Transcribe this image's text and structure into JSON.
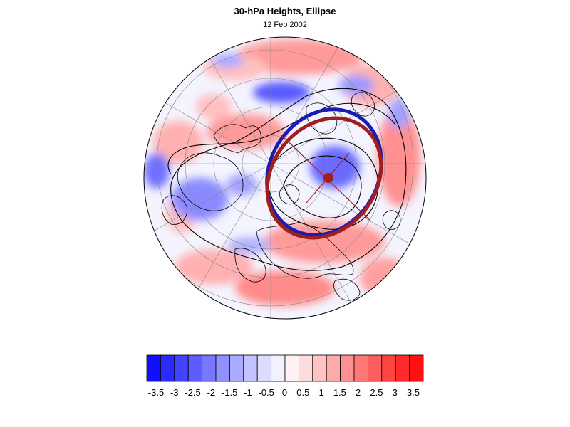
{
  "header": {
    "title": "30-hPa Heights, Ellipse",
    "subtitle": "12 Feb 2002"
  },
  "colorbar": {
    "colors": [
      "#1010ff",
      "#2a2aff",
      "#4444ff",
      "#5d5dff",
      "#7777ff",
      "#9090ff",
      "#aaaaff",
      "#c3c3ff",
      "#dcdcff",
      "#f2f2ff",
      "#fff2f2",
      "#ffdcdc",
      "#ffc3c3",
      "#ffaaaa",
      "#ff9090",
      "#ff7777",
      "#ff5d5d",
      "#ff4444",
      "#ff2a2a",
      "#ff1010"
    ],
    "tick_labels": [
      "-3.5",
      "-3",
      "-2.5",
      "-2",
      "-1.5",
      "-1",
      "-0.5",
      "0",
      "0.5",
      "1",
      "1.5",
      "2",
      "2.5",
      "3",
      "3.5"
    ]
  },
  "map": {
    "projection": "north-polar-stereographic",
    "legend_overlays": [
      "blue-ellipse",
      "darkred-ellipse",
      "vortex-center-dot",
      "height-contours"
    ],
    "colors": {
      "blue_ellipse": "#1a1ab4",
      "red_ellipse": "#a01e1e",
      "contour": "#000000",
      "graticule": "#888888"
    }
  }
}
